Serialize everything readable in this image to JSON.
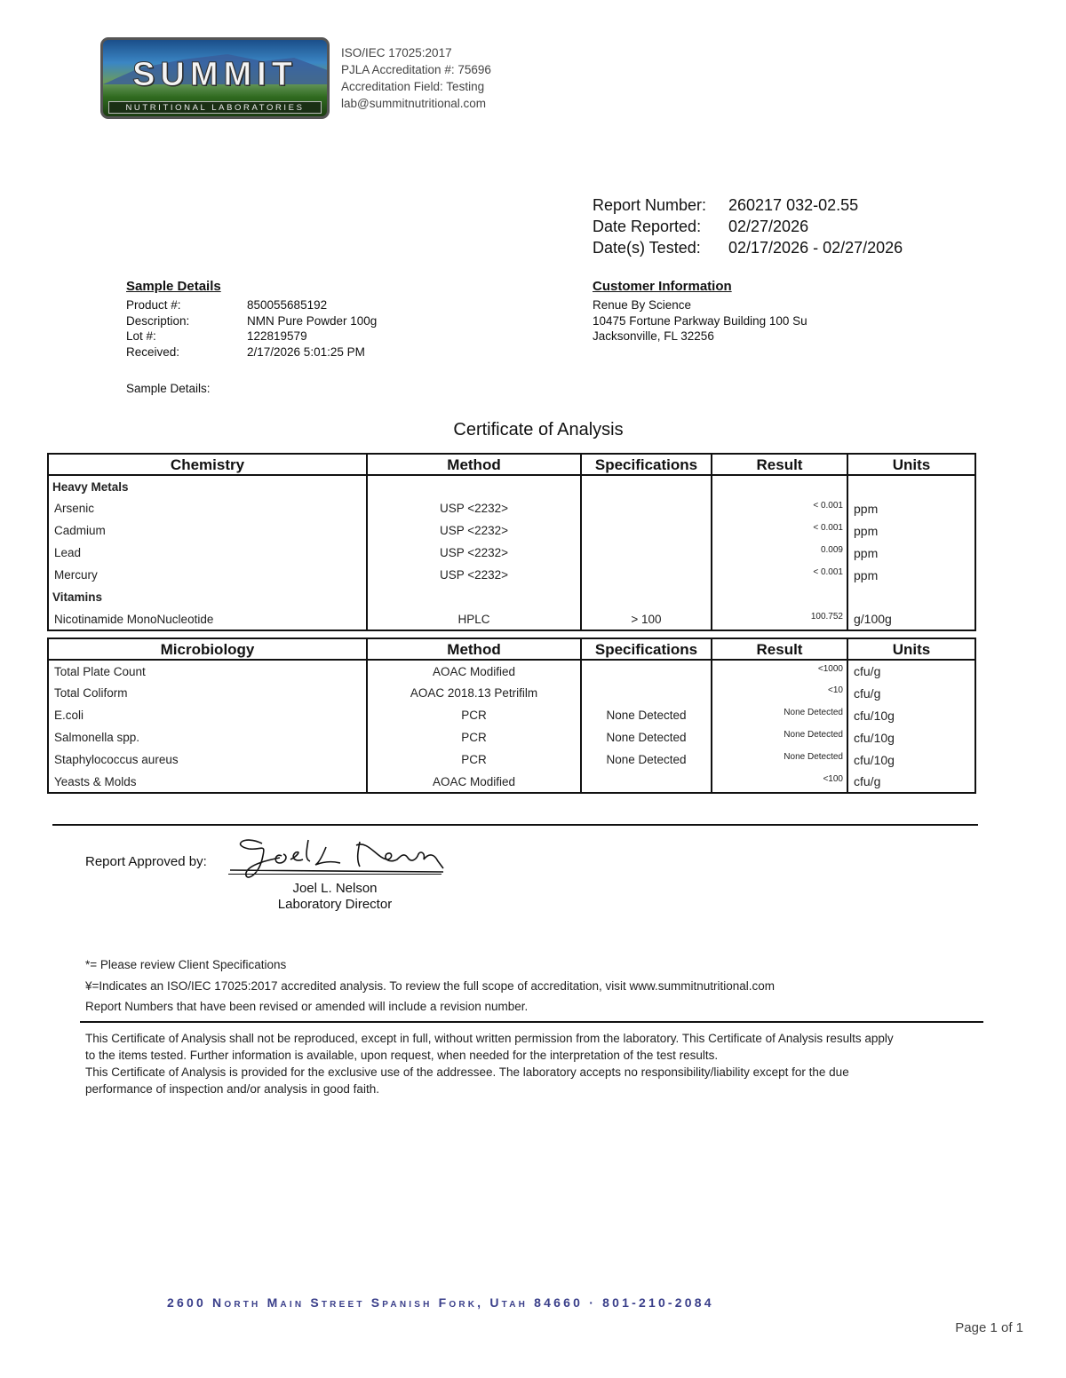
{
  "logo": {
    "name": "SUMMIT",
    "subtitle": "NUTRITIONAL LABORATORIES"
  },
  "accreditation": [
    "ISO/IEC 17025:2017",
    "PJLA Accreditation #: 75696",
    "Accreditation Field: Testing",
    "lab@summitnutritional.com"
  ],
  "report": {
    "number_label": "Report Number:",
    "number": "260217 032-02.55",
    "reported_label": "Date Reported:",
    "reported": "02/27/2026",
    "tested_label": "Date(s) Tested:",
    "tested": "02/17/2026 - 02/27/2026"
  },
  "sample": {
    "heading": "Sample Details",
    "product_label": "Product #:",
    "product": "850055685192",
    "description_label": "Description:",
    "description": "NMN Pure Powder 100g",
    "lot_label": "Lot #:",
    "lot": "122819579",
    "received_label": "Received:",
    "received": "2/17/2026 5:01:25 PM",
    "details_label": "Sample Details:"
  },
  "customer": {
    "heading": "Customer Information",
    "name": "Renue By Science",
    "address1": "10475 Fortune Parkway Building 100 Su",
    "address2": "Jacksonville, FL 32256"
  },
  "title": "Certificate of Analysis",
  "chemistry": {
    "headers": [
      "Chemistry",
      "Method",
      "Specifications",
      "Result",
      "Units"
    ],
    "groups": [
      {
        "name": "Heavy Metals",
        "rows": [
          {
            "test": "Arsenic",
            "method": "USP <2232>",
            "spec": "",
            "result": "< 0.001",
            "units": "ppm"
          },
          {
            "test": "Cadmium",
            "method": "USP <2232>",
            "spec": "",
            "result": "< 0.001",
            "units": "ppm"
          },
          {
            "test": "Lead",
            "method": "USP <2232>",
            "spec": "",
            "result": "0.009",
            "units": "ppm"
          },
          {
            "test": "Mercury",
            "method": "USP <2232>",
            "spec": "",
            "result": "< 0.001",
            "units": "ppm"
          }
        ]
      },
      {
        "name": "Vitamins",
        "rows": [
          {
            "test": "Nicotinamide MonoNucleotide",
            "method": "HPLC",
            "spec": "> 100",
            "result": "100.752",
            "units": "g/100g"
          }
        ]
      }
    ]
  },
  "microbiology": {
    "headers": [
      "Microbiology",
      "Method",
      "Specifications",
      "Result",
      "Units"
    ],
    "rows": [
      {
        "test": "Total Plate Count",
        "method": "AOAC Modified",
        "spec": "",
        "result": "<1000",
        "units": "cfu/g"
      },
      {
        "test": "Total Coliform",
        "method": "AOAC 2018.13 Petrifilm",
        "spec": "",
        "result": "<10",
        "units": "cfu/g"
      },
      {
        "test": "E.coli",
        "method": "PCR",
        "spec": "None Detected",
        "result": "None Detected",
        "units": "cfu/10g"
      },
      {
        "test": "Salmonella spp.",
        "method": "PCR",
        "spec": "None Detected",
        "result": "None Detected",
        "units": "cfu/10g"
      },
      {
        "test": "Staphylococcus aureus",
        "method": "PCR",
        "spec": "None Detected",
        "result": "None Detected",
        "units": "cfu/10g"
      },
      {
        "test": "Yeasts & Molds",
        "method": "AOAC Modified",
        "spec": "",
        "result": "<100",
        "units": "cfu/g"
      }
    ]
  },
  "approval": {
    "label": "Report Approved by:",
    "signature": "Joel L Nelson",
    "name": "Joel L. Nelson",
    "title": "Laboratory Director"
  },
  "notes": [
    "*= Please review Client Specifications",
    "¥=Indicates an ISO/IEC 17025:2017 accredited analysis. To review the full scope of accreditation, visit www.summitnutritional.com",
    "Report Numbers that have been revised or amended will include a revision number."
  ],
  "disclaimer": [
    "This Certificate of Analysis shall not be reproduced, except in full, without written permission from the laboratory. This Certificate of Analysis results apply",
    "to the items tested. Further information is available, upon request, when needed for the interpretation of the test results.",
    "This Certificate of Analysis is provided for the exclusive use of the addressee. The laboratory accepts no responsibility/liability except for the due",
    "performance of inspection and/or analysis in good faith."
  ],
  "footer": {
    "address": "2600 North Main Street Spanish Fork, Utah  84660 · 801-210-2084",
    "page": "Page 1 of 1"
  }
}
